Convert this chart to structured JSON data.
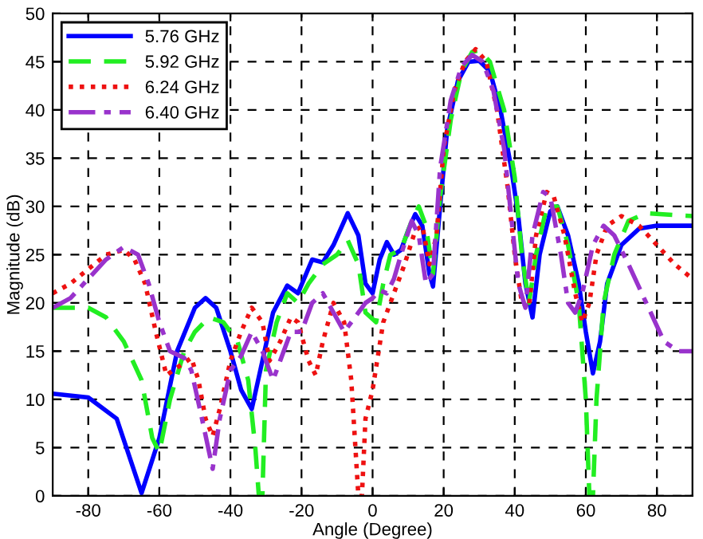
{
  "chart_data": {
    "type": "line",
    "xlabel": "Angle (Degree)",
    "ylabel": "Magnitude (dB)",
    "xlim": [
      -90,
      90
    ],
    "ylim": [
      0,
      50
    ],
    "xticks": [
      -80,
      -60,
      -40,
      -20,
      0,
      20,
      40,
      60,
      80
    ],
    "yticks": [
      0,
      5,
      10,
      15,
      20,
      25,
      30,
      35,
      40,
      45,
      50
    ],
    "grid": true,
    "legend": "top left",
    "series": [
      {
        "name": "5.76 GHz",
        "color": "#0000ff",
        "line_style": "solid",
        "x": [
          -90,
          -80,
          -72,
          -65,
          -60,
          -55,
          -50,
          -47,
          -44,
          -40,
          -37,
          -34,
          -31,
          -28,
          -24,
          -21,
          -17,
          -14,
          -11,
          -7,
          -4,
          -2,
          0,
          2,
          4,
          6,
          8,
          10,
          12,
          14,
          16,
          17,
          19,
          21,
          24,
          27,
          30,
          33,
          36,
          39,
          41,
          43,
          45,
          47,
          50,
          52,
          55,
          58,
          60,
          62,
          64,
          66,
          70,
          75,
          80,
          90
        ],
        "values": [
          10.6,
          10.2,
          8,
          0.3,
          6,
          15,
          19.5,
          20.5,
          19.5,
          15,
          11,
          9,
          14,
          19,
          21.8,
          21,
          24.5,
          24.2,
          26,
          29.3,
          27,
          22,
          21,
          24.5,
          26.3,
          25,
          25.5,
          27.5,
          29.2,
          28,
          23,
          21.7,
          30,
          38,
          43,
          45,
          45.1,
          44,
          40,
          34,
          29,
          22,
          18.5,
          25,
          29.5,
          30,
          27,
          22,
          17,
          12.7,
          16,
          22,
          26,
          27.7,
          28,
          28
        ]
      },
      {
        "name": "5.92 GHz",
        "color": "#22ee22",
        "line_style": "dashed",
        "x": [
          -90,
          -80,
          -75,
          -70,
          -65,
          -62,
          -60,
          -57,
          -53,
          -50,
          -46,
          -42,
          -38,
          -35,
          -33,
          -32,
          -31,
          -30,
          -27,
          -24,
          -21,
          -18,
          -14,
          -10,
          -7,
          -4,
          -2,
          1,
          3,
          5,
          8,
          11,
          13,
          15,
          17,
          19,
          22,
          25,
          28,
          30,
          33,
          37,
          40,
          42,
          44,
          46,
          49,
          52,
          55,
          58,
          60,
          61,
          62,
          63,
          65,
          68,
          72,
          77,
          85,
          90
        ],
        "values": [
          19.5,
          19.5,
          18.5,
          16,
          12,
          6,
          4.5,
          10,
          15,
          17,
          18.5,
          18,
          16,
          12,
          5,
          0,
          0,
          13,
          18,
          21,
          20,
          22,
          24,
          25,
          26.5,
          24,
          19,
          18,
          22,
          25,
          25.5,
          28.5,
          30,
          28,
          23,
          31,
          39,
          44,
          46,
          46.2,
          45,
          40,
          33,
          25,
          20,
          25,
          30,
          30,
          26,
          20,
          10,
          0,
          0,
          10,
          20,
          25,
          28.5,
          29.3,
          29.1,
          29
        ]
      },
      {
        "name": "6.24 GHz",
        "color": "#ee1111",
        "line_style": "dotted",
        "x": [
          -90,
          -85,
          -80,
          -75,
          -70,
          -67,
          -64,
          -61,
          -58,
          -55,
          -51,
          -49,
          -47,
          -45,
          -43,
          -40,
          -37,
          -34,
          -31,
          -29,
          -26,
          -23,
          -21,
          -18,
          -16,
          -14,
          -11,
          -8,
          -6,
          -4,
          -3,
          -2,
          0,
          3,
          6,
          9,
          12,
          14,
          16,
          18,
          20,
          23,
          26,
          29,
          32,
          35,
          38,
          40,
          42,
          44,
          46,
          49,
          51,
          54,
          57,
          59,
          61,
          63,
          66,
          70,
          75,
          80,
          85,
          90
        ],
        "values": [
          21,
          22,
          23.5,
          25,
          25.5,
          24.5,
          22,
          17,
          12.5,
          13.3,
          14.3,
          12,
          8,
          6.2,
          9,
          14,
          17,
          19.5,
          18,
          14,
          16,
          18.5,
          18,
          14,
          12.5,
          16,
          20,
          18,
          12,
          0,
          0,
          8,
          11,
          18,
          21,
          24,
          27.5,
          28,
          24,
          27,
          36,
          42,
          45,
          46.3,
          45,
          40,
          32,
          25,
          20,
          19.5,
          27,
          31.5,
          31,
          27,
          21,
          18,
          20,
          25,
          28,
          29,
          28,
          26,
          24,
          22.5
        ]
      },
      {
        "name": "6.40 GHz",
        "color": "#9933cc",
        "line_style": "dashdot",
        "x": [
          -90,
          -85,
          -80,
          -75,
          -70,
          -66,
          -63,
          -60,
          -57,
          -53,
          -51,
          -48,
          -45,
          -43,
          -40,
          -37,
          -34,
          -31,
          -28,
          -26,
          -23,
          -20,
          -17,
          -14,
          -11,
          -8,
          -5,
          -2,
          0,
          2,
          4,
          6,
          8,
          11,
          13,
          15,
          17,
          19,
          22,
          25,
          28,
          31,
          34,
          37,
          39,
          41,
          43,
          45,
          48,
          50,
          53,
          55,
          57,
          59,
          62,
          65,
          68,
          72,
          77,
          82,
          86,
          90
        ],
        "values": [
          19.5,
          20.5,
          22.5,
          24.5,
          25.8,
          25,
          22,
          18,
          15,
          14.3,
          13,
          8,
          2.8,
          8,
          13,
          14.5,
          17,
          15,
          12,
          14,
          17,
          17,
          20,
          21,
          19,
          17,
          18.5,
          20,
          20.5,
          21.3,
          21,
          22.5,
          25,
          28.5,
          27,
          22,
          23,
          34,
          41,
          44.5,
          45.7,
          45,
          42,
          36,
          29,
          22,
          19.5,
          27,
          31.5,
          31,
          25,
          20,
          19,
          21,
          26,
          28,
          27,
          24,
          20,
          16,
          15,
          15
        ]
      }
    ]
  }
}
